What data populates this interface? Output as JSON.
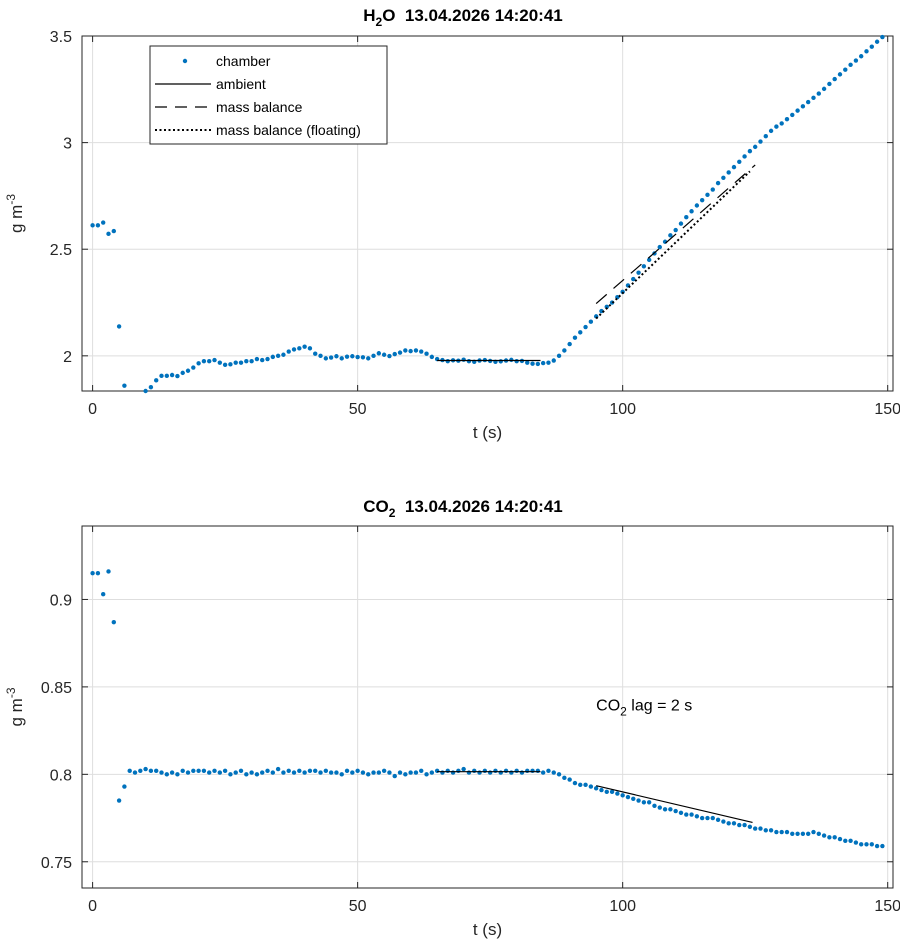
{
  "colors": {
    "chamber": "#0072BD",
    "line": "#000000",
    "grid": "#dedede",
    "axis": "#262626"
  },
  "chart_data": [
    {
      "id": "h2o",
      "type": "scatter",
      "title_main": "H",
      "title_sub": "2",
      "title_rest": "O  13.04.2026 14:20:41",
      "xlabel": "t (s)",
      "ylabel_main": "g m",
      "ylabel_sup": "-3",
      "xlim": [
        -2,
        151
      ],
      "ylim": [
        1.835,
        3.5
      ],
      "xticks": [
        0,
        50,
        100,
        150
      ],
      "yticks": [
        2,
        2.5,
        3,
        3.5
      ],
      "xtick_labels": [
        "0",
        "50",
        "100",
        "150"
      ],
      "ytick_labels": [
        "2",
        "2.5",
        "3",
        "3.5"
      ],
      "grid": true,
      "legend": {
        "placement": "top-left",
        "entries": [
          {
            "label": "chamber",
            "style": "dot"
          },
          {
            "label": "ambient",
            "style": "solid"
          },
          {
            "label": "mass balance",
            "style": "dashed"
          },
          {
            "label": "mass balance (floating)",
            "style": "dotted"
          }
        ]
      },
      "series": [
        {
          "name": "chamber",
          "style": "dot",
          "x": [
            0,
            1,
            2,
            3,
            4,
            5,
            6,
            7,
            8,
            9,
            10,
            11,
            12,
            13,
            14,
            15,
            16,
            17,
            18,
            19,
            20,
            21,
            22,
            23,
            24,
            25,
            26,
            27,
            28,
            29,
            30,
            31,
            32,
            33,
            34,
            35,
            36,
            37,
            38,
            39,
            40,
            41,
            42,
            43,
            44,
            45,
            46,
            47,
            48,
            49,
            50,
            51,
            52,
            53,
            54,
            55,
            56,
            57,
            58,
            59,
            60,
            61,
            62,
            63,
            64,
            65,
            66,
            67,
            68,
            69,
            70,
            71,
            72,
            73,
            74,
            75,
            76,
            77,
            78,
            79,
            80,
            81,
            82,
            83,
            84,
            85,
            86,
            87,
            88,
            89,
            90,
            91,
            92,
            93,
            94,
            95,
            96,
            97,
            98,
            99,
            100,
            101,
            102,
            103,
            104,
            105,
            106,
            107,
            108,
            109,
            110,
            111,
            112,
            113,
            114,
            115,
            116,
            117,
            118,
            119,
            120,
            121,
            122,
            123,
            124,
            125,
            126,
            127,
            128,
            129,
            130,
            131,
            132,
            133,
            134,
            135,
            136,
            137,
            138,
            139,
            140,
            141,
            142,
            143,
            144,
            145,
            146,
            147,
            148,
            149
          ],
          "y": [
            2.612,
            2.612,
            2.625,
            2.572,
            2.585,
            2.138,
            1.86,
            1.825,
            1.83,
            1.831,
            1.835,
            1.853,
            1.885,
            1.906,
            1.906,
            1.91,
            1.905,
            1.92,
            1.93,
            1.945,
            1.965,
            1.975,
            1.975,
            1.98,
            1.968,
            1.958,
            1.96,
            1.968,
            1.968,
            1.975,
            1.975,
            1.985,
            1.98,
            1.985,
            1.995,
            2.0,
            2.005,
            2.02,
            2.03,
            2.035,
            2.043,
            2.035,
            2.01,
            2.0,
            1.988,
            1.992,
            1.998,
            1.988,
            1.996,
            1.998,
            1.994,
            1.993,
            1.988,
            2.0,
            2.012,
            2.005,
            1.999,
            2.008,
            2.015,
            2.025,
            2.022,
            2.025,
            2.02,
            2.01,
            1.995,
            1.985,
            1.98,
            1.975,
            1.979,
            1.977,
            1.982,
            1.975,
            1.972,
            1.978,
            1.98,
            1.976,
            1.972,
            1.974,
            1.978,
            1.981,
            1.975,
            1.976,
            1.968,
            1.963,
            1.962,
            1.966,
            1.968,
            1.978,
            2.0,
            2.025,
            2.055,
            2.085,
            2.11,
            2.135,
            2.16,
            2.185,
            2.21,
            2.23,
            2.25,
            2.275,
            2.3,
            2.33,
            2.36,
            2.39,
            2.42,
            2.45,
            2.48,
            2.51,
            2.535,
            2.565,
            2.59,
            2.62,
            2.65,
            2.678,
            2.705,
            2.73,
            2.755,
            2.78,
            2.81,
            2.835,
            2.86,
            2.885,
            2.91,
            2.935,
            2.96,
            2.98,
            3.005,
            3.03,
            3.055,
            3.075,
            3.09,
            3.11,
            3.13,
            3.15,
            3.17,
            3.19,
            3.21,
            3.23,
            3.252,
            3.275,
            3.298,
            3.32,
            3.342,
            3.365,
            3.385,
            3.405,
            3.428,
            3.45,
            3.473,
            3.495
          ]
        },
        {
          "name": "ambient",
          "style": "solid",
          "x": [
            65,
            84.5
          ],
          "y": [
            1.978,
            1.978
          ]
        },
        {
          "name": "mass balance",
          "style": "dashed",
          "x": [
            95,
            125
          ],
          "y": [
            2.245,
            2.895
          ]
        },
        {
          "name": "mass balance (floating)",
          "style": "dotted",
          "x": [
            95,
            124
          ],
          "y": [
            2.175,
            2.865
          ]
        }
      ]
    },
    {
      "id": "co2",
      "type": "scatter",
      "title_main": "CO",
      "title_sub": "2",
      "title_rest": "  13.04.2026 14:20:41",
      "xlabel": "t (s)",
      "ylabel_main": "g m",
      "ylabel_sup": "-3",
      "xlim": [
        -2,
        151
      ],
      "ylim": [
        0.735,
        0.942
      ],
      "xticks": [
        0,
        50,
        100,
        150
      ],
      "yticks": [
        0.75,
        0.8,
        0.85,
        0.9
      ],
      "xtick_labels": [
        "0",
        "50",
        "100",
        "150"
      ],
      "ytick_labels": [
        "0.75",
        "0.8",
        "0.85",
        "0.9"
      ],
      "grid": true,
      "annotation": {
        "main": "CO",
        "sub": "2",
        "rest": " lag = 2 s",
        "x": 95,
        "y": 0.84
      },
      "series": [
        {
          "name": "chamber",
          "style": "dot",
          "x": [
            0,
            1,
            2,
            3,
            4,
            5,
            6,
            7,
            8,
            9,
            10,
            11,
            12,
            13,
            14,
            15,
            16,
            17,
            18,
            19,
            20,
            21,
            22,
            23,
            24,
            25,
            26,
            27,
            28,
            29,
            30,
            31,
            32,
            33,
            34,
            35,
            36,
            37,
            38,
            39,
            40,
            41,
            42,
            43,
            44,
            45,
            46,
            47,
            48,
            49,
            50,
            51,
            52,
            53,
            54,
            55,
            56,
            57,
            58,
            59,
            60,
            61,
            62,
            63,
            64,
            65,
            66,
            67,
            68,
            69,
            70,
            71,
            72,
            73,
            74,
            75,
            76,
            77,
            78,
            79,
            80,
            81,
            82,
            83,
            84,
            85,
            86,
            87,
            88,
            89,
            90,
            91,
            92,
            93,
            94,
            95,
            96,
            97,
            98,
            99,
            100,
            101,
            102,
            103,
            104,
            105,
            106,
            107,
            108,
            109,
            110,
            111,
            112,
            113,
            114,
            115,
            116,
            117,
            118,
            119,
            120,
            121,
            122,
            123,
            124,
            125,
            126,
            127,
            128,
            129,
            130,
            131,
            132,
            133,
            134,
            135,
            136,
            137,
            138,
            139,
            140,
            141,
            142,
            143,
            144,
            145,
            146,
            147,
            148,
            149
          ],
          "y": [
            0.915,
            0.915,
            0.903,
            0.916,
            0.887,
            0.785,
            0.793,
            0.802,
            0.801,
            0.802,
            0.803,
            0.802,
            0.802,
            0.801,
            0.8,
            0.801,
            0.8,
            0.802,
            0.801,
            0.802,
            0.802,
            0.802,
            0.801,
            0.802,
            0.801,
            0.802,
            0.8,
            0.801,
            0.802,
            0.8,
            0.801,
            0.8,
            0.801,
            0.802,
            0.801,
            0.803,
            0.801,
            0.802,
            0.801,
            0.802,
            0.801,
            0.802,
            0.802,
            0.801,
            0.802,
            0.801,
            0.801,
            0.8,
            0.802,
            0.801,
            0.802,
            0.801,
            0.8,
            0.801,
            0.801,
            0.802,
            0.801,
            0.799,
            0.801,
            0.8,
            0.801,
            0.801,
            0.802,
            0.8,
            0.801,
            0.802,
            0.801,
            0.802,
            0.801,
            0.802,
            0.803,
            0.801,
            0.802,
            0.801,
            0.802,
            0.801,
            0.802,
            0.801,
            0.802,
            0.801,
            0.802,
            0.801,
            0.802,
            0.802,
            0.802,
            0.801,
            0.802,
            0.801,
            0.8,
            0.798,
            0.797,
            0.795,
            0.794,
            0.794,
            0.793,
            0.792,
            0.791,
            0.79,
            0.79,
            0.789,
            0.788,
            0.787,
            0.786,
            0.785,
            0.784,
            0.784,
            0.782,
            0.781,
            0.78,
            0.78,
            0.779,
            0.778,
            0.777,
            0.777,
            0.776,
            0.775,
            0.775,
            0.775,
            0.774,
            0.773,
            0.772,
            0.772,
            0.771,
            0.771,
            0.77,
            0.769,
            0.769,
            0.768,
            0.768,
            0.767,
            0.767,
            0.767,
            0.766,
            0.766,
            0.766,
            0.766,
            0.767,
            0.766,
            0.765,
            0.764,
            0.764,
            0.763,
            0.762,
            0.762,
            0.761,
            0.76,
            0.76,
            0.76,
            0.759,
            0.759
          ]
        },
        {
          "name": "ambient",
          "style": "solid",
          "x": [
            65,
            84.5
          ],
          "y": [
            0.8015,
            0.8015
          ]
        },
        {
          "name": "mass balance",
          "style": "solid",
          "x": [
            95,
            124.5
          ],
          "y": [
            0.7935,
            0.7725
          ]
        }
      ]
    }
  ]
}
